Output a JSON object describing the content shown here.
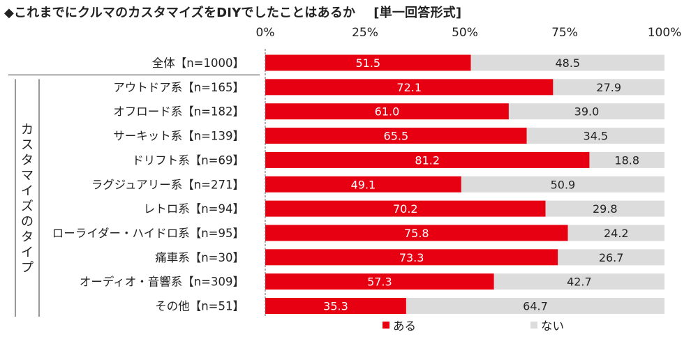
{
  "title": "◆これまでにクルマのカスタマイズをDIYでしたことはあるか",
  "question_format": "[単一回答形式]",
  "chart_data": {
    "type": "bar",
    "orientation": "horizontal",
    "stacked": true,
    "unit": "%",
    "x_ticks": [
      "0%",
      "25%",
      "50%",
      "75%",
      "100%"
    ],
    "xlim": [
      0,
      100
    ],
    "categories": [
      "全体【n=1000】",
      "アウトドア系【n=165】",
      "オフロード系【n=182】",
      "サーキット系【n=139】",
      "ドリフト系【n=69】",
      "ラグジュアリー系【n=271】",
      "レトロ系【n=94】",
      "ローライダー・ハイドロ系【n=95】",
      "痛車系【n=30】",
      "オーディオ・音響系【n=309】",
      "その他【n=51】"
    ],
    "group_label": "カスタマイズのタイプ",
    "series": [
      {
        "name": "ある",
        "color": "#e60012",
        "values": [
          51.5,
          72.1,
          61.0,
          65.5,
          81.2,
          49.1,
          70.2,
          75.8,
          73.3,
          57.3,
          35.3
        ]
      },
      {
        "name": "ない",
        "color": "#dcdcdc",
        "values": [
          48.5,
          27.9,
          39.0,
          34.5,
          18.8,
          50.9,
          29.8,
          24.2,
          26.7,
          42.7,
          64.7
        ]
      }
    ],
    "legend_position": "bottom"
  }
}
